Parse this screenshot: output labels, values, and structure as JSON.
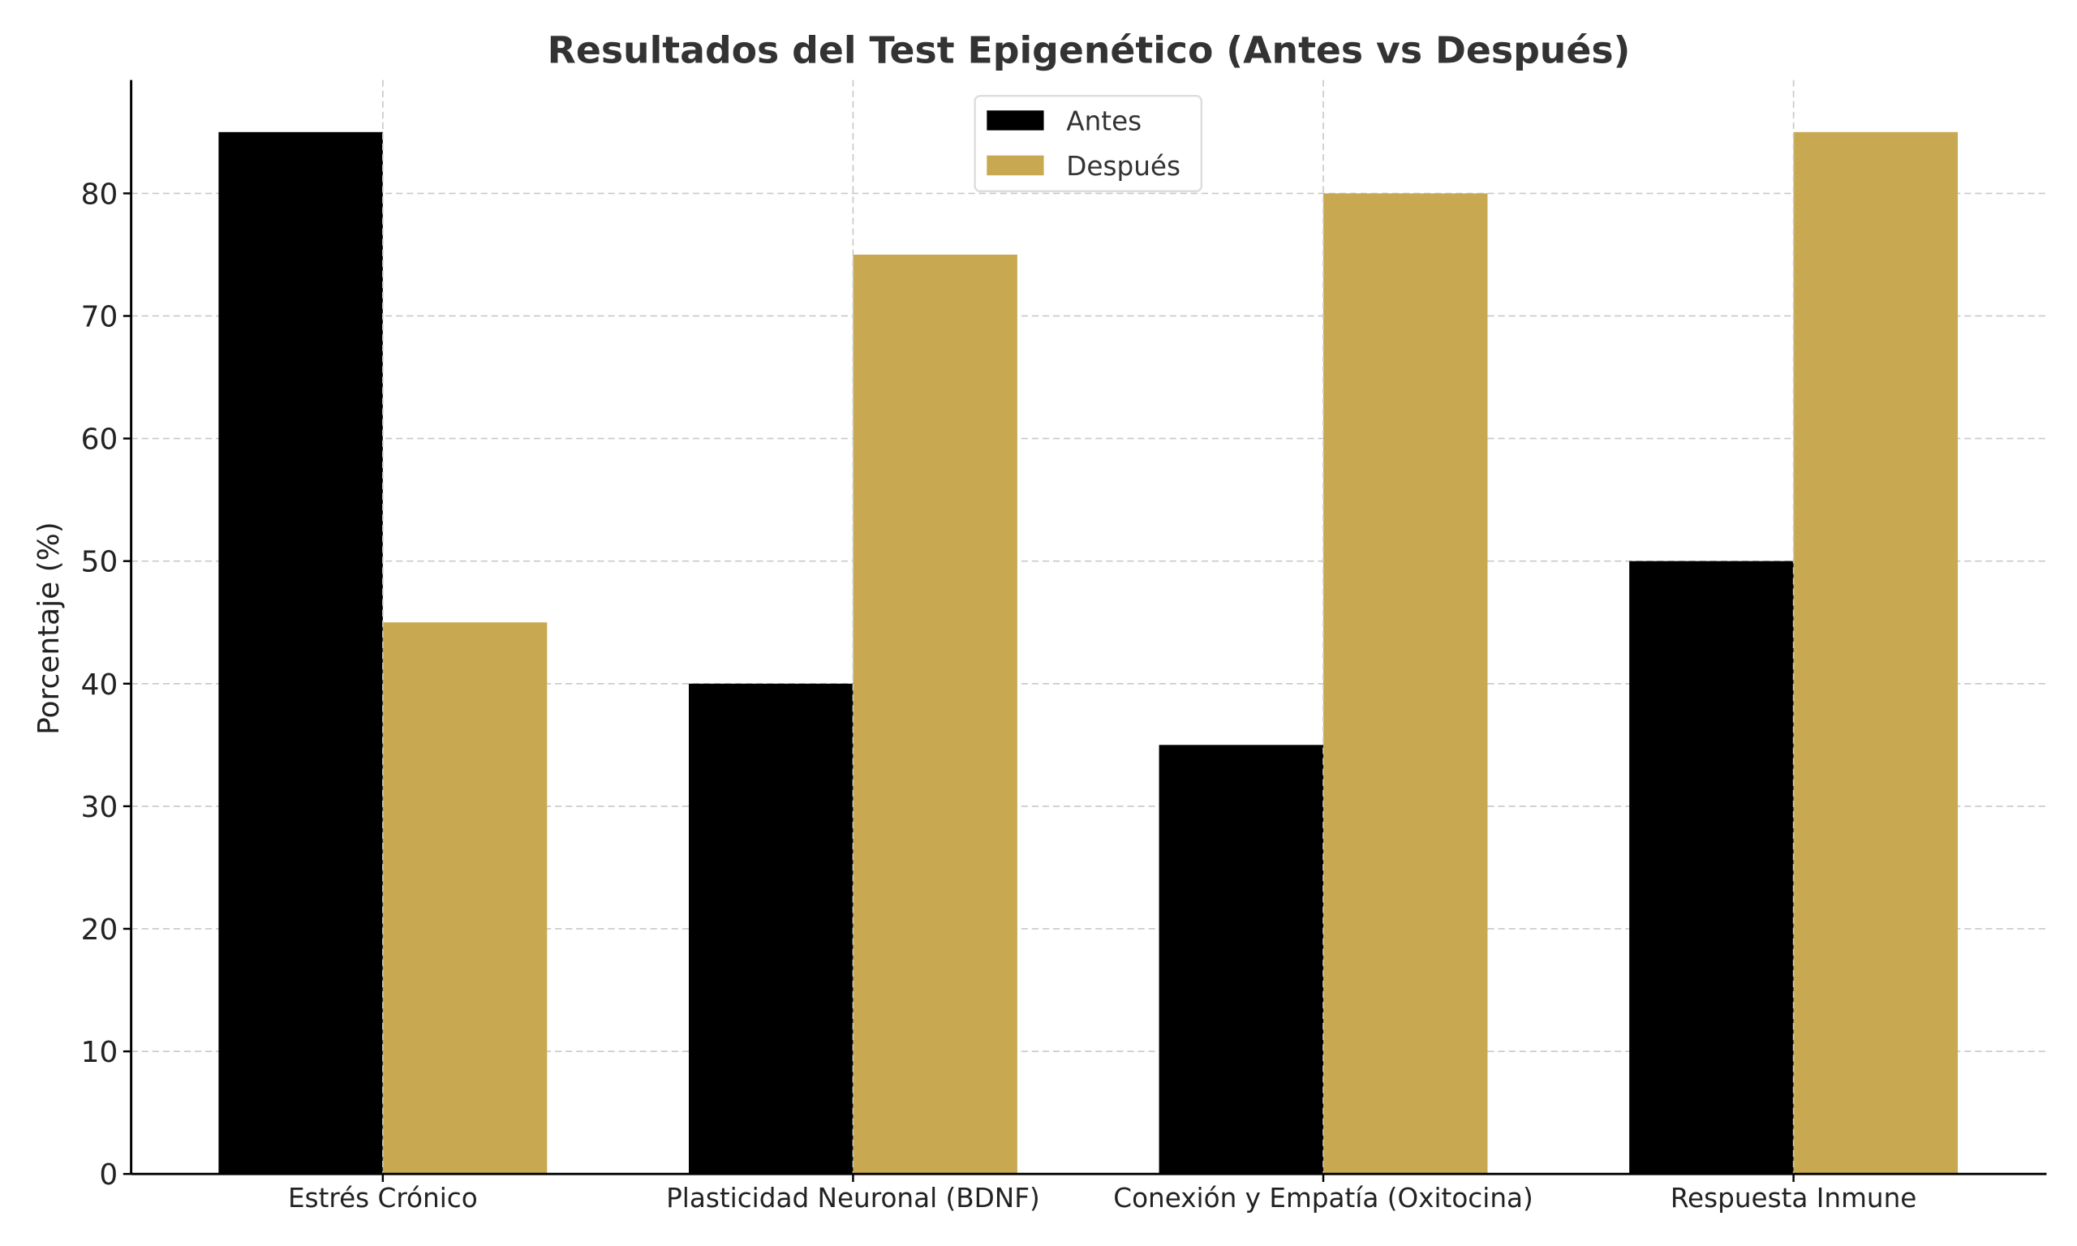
{
  "chart_data": {
    "type": "bar",
    "title": "Resultados del Test Epigenético (Antes vs Después)",
    "xlabel": "",
    "ylabel": "Porcentaje (%)",
    "categories": [
      "Estrés Crónico",
      "Plasticidad Neuronal (BDNF)",
      "Conexión y Empatía (Oxitocina)",
      "Respuesta Inmune"
    ],
    "series": [
      {
        "name": "Antes",
        "color": "#000000",
        "values": [
          85,
          40,
          35,
          50
        ]
      },
      {
        "name": "Después",
        "color": "#C8A851",
        "values": [
          45,
          75,
          80,
          85
        ]
      }
    ],
    "ylim": [
      0,
      89.25
    ],
    "yticks": [
      0,
      10,
      20,
      30,
      40,
      50,
      60,
      70,
      80
    ],
    "grid": true,
    "legend_position": "top-center"
  }
}
